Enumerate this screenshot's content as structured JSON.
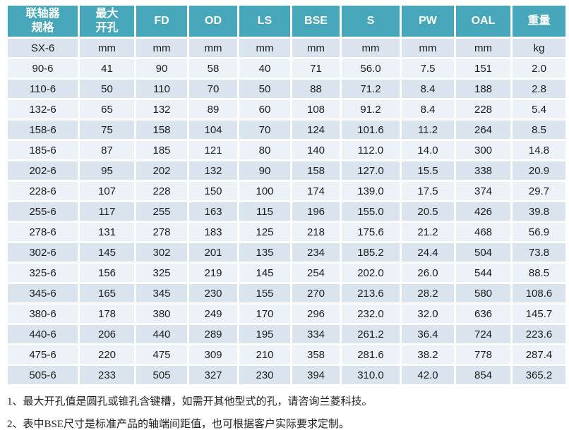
{
  "accent_color": "#46A7BA",
  "row_color_dark": "#D9E4EE",
  "row_color_light": "#ECF2F8",
  "table": {
    "header_names": [
      "spec",
      "max-bore",
      "fd",
      "od",
      "ls",
      "bse",
      "s",
      "pw",
      "oal",
      "weight"
    ],
    "headers": [
      [
        "联轴器",
        "规格"
      ],
      [
        "最大",
        "开孔"
      ],
      [
        "FD"
      ],
      [
        "OD"
      ],
      [
        "LS"
      ],
      [
        "BSE"
      ],
      [
        "S"
      ],
      [
        "PW"
      ],
      [
        "OAL"
      ],
      [
        "重量"
      ]
    ],
    "units_row": [
      "SX-6",
      "mm",
      "mm",
      "mm",
      "mm",
      "mm",
      "mm",
      "mm",
      "mm",
      "kg"
    ],
    "rows": [
      [
        "90-6",
        "41",
        "90",
        "58",
        "40",
        "71",
        "56.0",
        "7.5",
        "151",
        "2.0"
      ],
      [
        "110-6",
        "50",
        "110",
        "70",
        "50",
        "88",
        "71.2",
        "8.4",
        "188",
        "2.8"
      ],
      [
        "132-6",
        "65",
        "132",
        "89",
        "60",
        "108",
        "91.2",
        "8.4",
        "228",
        "5.4"
      ],
      [
        "158-6",
        "75",
        "158",
        "104",
        "70",
        "124",
        "101.6",
        "11.2",
        "264",
        "8.5"
      ],
      [
        "185-6",
        "87",
        "185",
        "121",
        "80",
        "140",
        "112.0",
        "14.0",
        "300",
        "14.8"
      ],
      [
        "202-6",
        "95",
        "202",
        "132",
        "90",
        "158",
        "127.0",
        "15.5",
        "338",
        "20.9"
      ],
      [
        "228-6",
        "107",
        "228",
        "150",
        "100",
        "174",
        "139.0",
        "17.5",
        "374",
        "29.7"
      ],
      [
        "255-6",
        "117",
        "255",
        "163",
        "115",
        "196",
        "155.0",
        "20.5",
        "426",
        "39.8"
      ],
      [
        "278-6",
        "131",
        "278",
        "183",
        "125",
        "218",
        "175.6",
        "21.2",
        "468",
        "56.9"
      ],
      [
        "302-6",
        "145",
        "302",
        "201",
        "135",
        "234",
        "185.2",
        "24.4",
        "504",
        "73.8"
      ],
      [
        "325-6",
        "156",
        "325",
        "219",
        "145",
        "254",
        "202.0",
        "26.0",
        "544",
        "88.5"
      ],
      [
        "345-6",
        "165",
        "345",
        "230",
        "155",
        "270",
        "213.6",
        "28.2",
        "580",
        "108.6"
      ],
      [
        "380-6",
        "178",
        "380",
        "249",
        "170",
        "296",
        "232.0",
        "32.0",
        "636",
        "145.7"
      ],
      [
        "440-6",
        "206",
        "440",
        "289",
        "195",
        "334",
        "261.2",
        "36.4",
        "724",
        "223.6"
      ],
      [
        "475-6",
        "220",
        "475",
        "309",
        "210",
        "358",
        "281.6",
        "38.2",
        "778",
        "287.4"
      ],
      [
        "505-6",
        "233",
        "505",
        "327",
        "230",
        "394",
        "310.0",
        "42.0",
        "854",
        "365.2"
      ]
    ]
  },
  "footnotes": [
    "1、最大开孔值是圆孔或锥孔含键槽，如需开其他型式的孔，请咨询兰菱科技。",
    "2、表中BSE尺寸是标准产品的轴端间距值，也可根据客户实际要求定制。"
  ]
}
